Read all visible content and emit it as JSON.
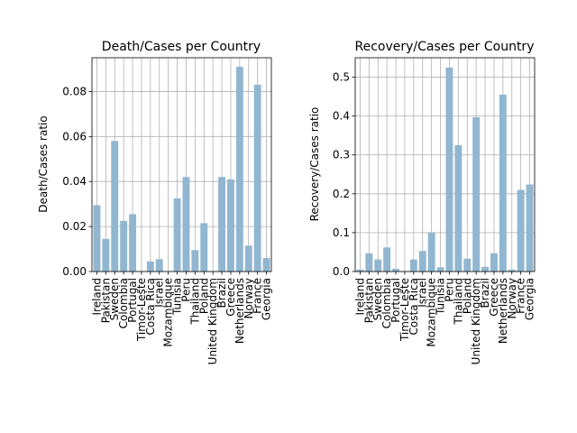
{
  "chart_data": [
    {
      "type": "bar",
      "title": "Death/Cases per Country",
      "xlabel": "",
      "ylabel": "Death/Cases ratio",
      "ylim": [
        0,
        0.095
      ],
      "yticks": [
        0.0,
        0.02,
        0.04,
        0.06,
        0.08
      ],
      "ytick_labels": [
        "0.00",
        "0.02",
        "0.04",
        "0.06",
        "0.08"
      ],
      "grid": true,
      "bar_color": "#91b6d0",
      "categories": [
        "Ireland",
        "Pakistan",
        "Sweden",
        "Colombia",
        "Portugal",
        "Timor-Leste",
        "Costa Rica",
        "Israel",
        "Mozambique",
        "Tunisia",
        "Peru",
        "Thailand",
        "Poland",
        "United Kingdom",
        "Brazil",
        "Greece",
        "Netherlands",
        "Norway",
        "France",
        "Georgia"
      ],
      "values": [
        0.0295,
        0.0145,
        0.058,
        0.0225,
        0.0255,
        0.0,
        0.0045,
        0.0055,
        0.0,
        0.0325,
        0.042,
        0.0095,
        0.0215,
        0.0,
        0.042,
        0.041,
        0.091,
        0.0115,
        0.083,
        0.006
      ]
    },
    {
      "type": "bar",
      "title": "Recovery/Cases per Country",
      "xlabel": "",
      "ylabel": "Recovery/Cases ratio",
      "ylim": [
        0,
        0.55
      ],
      "yticks": [
        0.0,
        0.1,
        0.2,
        0.3,
        0.4,
        0.5
      ],
      "ytick_labels": [
        "0.0",
        "0.1",
        "0.2",
        "0.3",
        "0.4",
        "0.5"
      ],
      "grid": true,
      "bar_color": "#91b6d0",
      "categories": [
        "Ireland",
        "Pakistan",
        "Sweden",
        "Colombia",
        "Portugal",
        "Timor-Leste",
        "Costa Rica",
        "Israel",
        "Mozambique",
        "Tunisia",
        "Peru",
        "Thailand",
        "Poland",
        "United Kingdom",
        "Brazil",
        "Greece",
        "Netherlands",
        "Norway",
        "France",
        "Georgia"
      ],
      "values": [
        0.005,
        0.047,
        0.031,
        0.062,
        0.007,
        0.0,
        0.031,
        0.053,
        0.1,
        0.011,
        0.525,
        0.325,
        0.033,
        0.397,
        0.012,
        0.047,
        0.455,
        0.005,
        0.21,
        0.224
      ]
    }
  ]
}
